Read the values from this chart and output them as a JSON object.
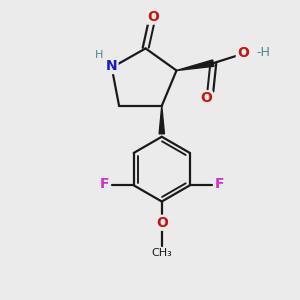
{
  "bg_color": "#ebebeb",
  "bond_color": "#1a1a1a",
  "bond_width": 1.6,
  "atom_colors": {
    "N": "#1a1acc",
    "O_red": "#cc1111",
    "F": "#cc33cc",
    "C": "#1a1a1a",
    "H_gray": "#4a8a8a"
  },
  "figsize": [
    3.0,
    3.0
  ],
  "dpi": 100,
  "xlim": [
    0,
    10
  ],
  "ylim": [
    0,
    10
  ]
}
